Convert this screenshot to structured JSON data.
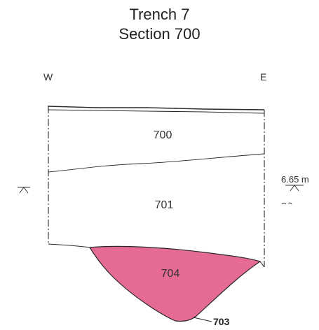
{
  "title": {
    "line1": "Trench 7",
    "line2": "Section 700"
  },
  "orientation": {
    "west": "W",
    "east": "E"
  },
  "contexts": [
    {
      "id": "700",
      "kind": "layer"
    },
    {
      "id": "701",
      "kind": "layer"
    },
    {
      "id": "704",
      "kind": "fill",
      "color": "#e56b93"
    }
  ],
  "cut": {
    "id": "703"
  },
  "datum": {
    "level": "6.65 m"
  },
  "colors": {
    "fill_704": "#e56b93",
    "line": "#2a2a2a"
  }
}
